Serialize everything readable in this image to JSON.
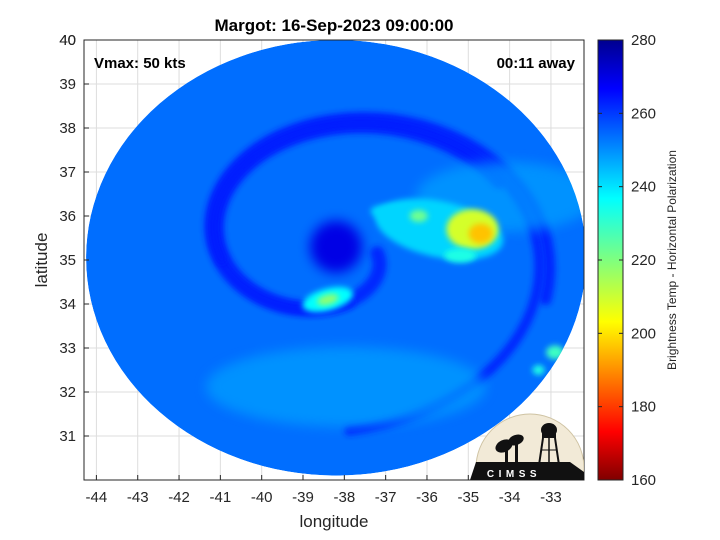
{
  "title": "Margot: 16-Sep-2023 09:00:00",
  "vmax_label": "Vmax: 50 kts",
  "time_label": "00:11 away",
  "x_axis": {
    "label": "longitude",
    "ticks": [
      "-44",
      "-43",
      "-42",
      "-41",
      "-40",
      "-39",
      "-38",
      "-37",
      "-36",
      "-35",
      "-34",
      "-33"
    ],
    "range": [
      -44.3,
      -32.2
    ]
  },
  "y_axis": {
    "label": "latitude",
    "ticks": [
      "31",
      "32",
      "33",
      "34",
      "35",
      "36",
      "37",
      "38",
      "39",
      "40"
    ],
    "range": [
      30.0,
      40.0
    ]
  },
  "colorbar": {
    "label": "Brightness Temp - Horizontal Polarization",
    "ticks": [
      "160",
      "180",
      "200",
      "220",
      "240",
      "260",
      "280"
    ],
    "range": [
      160,
      280
    ],
    "colormap": "jet"
  },
  "storm": {
    "name": "Margot",
    "center_lon": -38.2,
    "center_lat": 35.3,
    "swath_center_lon": -38.2,
    "swath_center_lat": 35.05,
    "swath_radius_deg_lon": 6.05,
    "swath_radius_deg_lat": 4.95,
    "background_tb": 252
  },
  "logo": {
    "text": "CIMSS"
  },
  "colors": {
    "axis": "#262626",
    "grid": "#dddddd",
    "background": "#ffffff"
  }
}
